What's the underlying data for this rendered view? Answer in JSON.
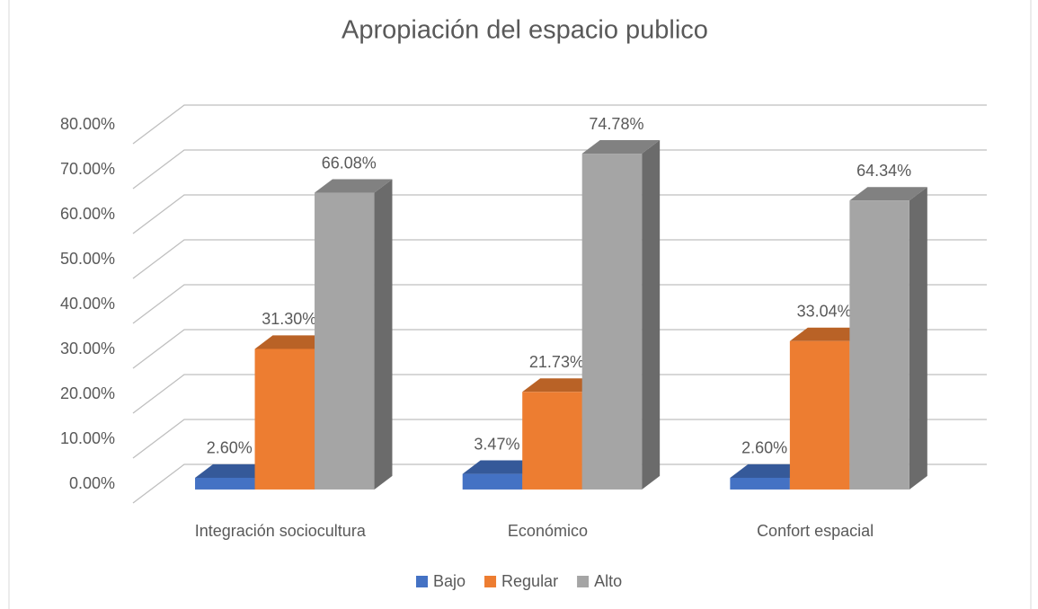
{
  "chart_data": {
    "type": "bar3d",
    "title": "Apropiación del espacio publico",
    "categories": [
      "Integración sociocultura",
      "Económico",
      "Confort espacial"
    ],
    "series": [
      {
        "name": "Bajo",
        "color": "#4472c4",
        "values": [
          2.6,
          3.47,
          2.6
        ],
        "value_labels": [
          "2.60%",
          "3.47%",
          "2.60%"
        ]
      },
      {
        "name": "Regular",
        "color": "#ed7d31",
        "values": [
          31.3,
          21.73,
          33.04
        ],
        "value_labels": [
          "31.30%",
          "21.73%",
          "33.04%"
        ]
      },
      {
        "name": "Alto",
        "color": "#a5a5a5",
        "values": [
          66.08,
          74.78,
          64.34
        ],
        "value_labels": [
          "66.08%",
          "74.78%",
          "64.34%"
        ]
      }
    ],
    "ylim": [
      0,
      80
    ],
    "yticks": [
      {
        "value": 0,
        "label": "0.00%"
      },
      {
        "value": 10,
        "label": "10.00%"
      },
      {
        "value": 20,
        "label": "20.00%"
      },
      {
        "value": 30,
        "label": "30.00%"
      },
      {
        "value": 40,
        "label": "40.00%"
      },
      {
        "value": 50,
        "label": "50.00%"
      },
      {
        "value": 60,
        "label": "60.00%"
      },
      {
        "value": 70,
        "label": "70.00%"
      },
      {
        "value": 80,
        "label": "80.00%"
      }
    ],
    "grid": true,
    "legend": "bottom"
  }
}
